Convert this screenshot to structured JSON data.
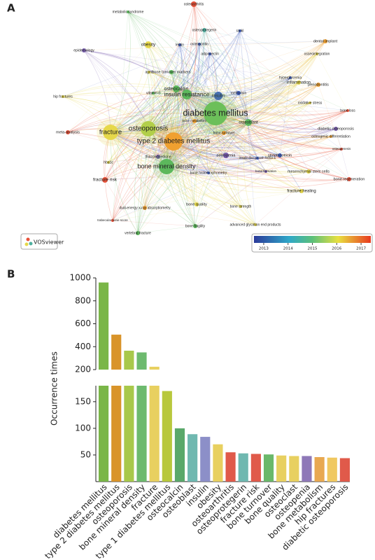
{
  "panel_labels": [
    "A",
    "B"
  ],
  "panel_a": {
    "nodes": [
      {
        "label": "osteoarthritis",
        "color": "#e8523a"
      },
      {
        "label": "metabolic syndrome",
        "color": "#5cb85c"
      },
      {
        "label": "osteoprotegerin",
        "color": "#4fb0a0"
      },
      {
        "label": "rankl",
        "color": "#3f5fc0"
      },
      {
        "label": "obesity",
        "color": "#e6d84a"
      },
      {
        "label": "leptin",
        "color": "#3f5fc0"
      },
      {
        "label": "osteopontin",
        "color": "#3f5fc0"
      },
      {
        "label": "dental implant",
        "color": "#f0a030"
      },
      {
        "label": "epidemiology",
        "color": "#7a5fb0"
      },
      {
        "label": "adiponectin",
        "color": "#3f5fc0"
      },
      {
        "label": "osseointegration",
        "color": "#e6d84a"
      },
      {
        "label": "aged",
        "color": "#e6d84a"
      },
      {
        "label": "bone turnover markers",
        "color": "#5cb85c"
      },
      {
        "label": "hyperglycemia",
        "color": "#3f5fc0"
      },
      {
        "label": "inflammation",
        "color": "#e6d84a"
      },
      {
        "label": "periodontitis",
        "color": "#f0a030"
      },
      {
        "label": "vitamin d",
        "color": "#5cb85c"
      },
      {
        "label": "osteocalcin",
        "color": "#5cb85c"
      },
      {
        "label": "insulin resistance",
        "color": "#5cb85c"
      },
      {
        "label": "insulin",
        "color": "#3f5fc0"
      },
      {
        "label": "metformin",
        "color": "#3f5fc0"
      },
      {
        "label": "hip fractures",
        "color": "#e6d84a"
      },
      {
        "label": "oxidative stress",
        "color": "#e6d84a"
      },
      {
        "label": "bone loss",
        "color": "#e8523a"
      },
      {
        "label": "osteoblast",
        "color": "#5cb85c"
      },
      {
        "label": "diabetes mellitus",
        "color": "#6cbf5a"
      },
      {
        "label": "bone metabolism",
        "color": "#f0a030"
      },
      {
        "label": "diabetic osteoporosis",
        "color": "#7a5fb0"
      },
      {
        "label": "osteogenic differentiation",
        "color": "#f0a030"
      },
      {
        "label": "meta-analysis",
        "color": "#e8523a"
      },
      {
        "label": "fracture",
        "color": "#e6d84a"
      },
      {
        "label": "osteoporosis",
        "color": "#b2cf4a"
      },
      {
        "label": "type 2 diabetes mellitus",
        "color": "#f0a030"
      },
      {
        "label": "bone turnover",
        "color": "#f0a030"
      },
      {
        "label": "thiazolidinedione",
        "color": "#7a5fb0"
      },
      {
        "label": "hba1c",
        "color": "#e6d84a"
      },
      {
        "label": "osteopenia",
        "color": "#7a5fb0"
      },
      {
        "label": "insulin-like growth factor-1",
        "color": "#3f5fc0"
      },
      {
        "label": "streptozotocin",
        "color": "#3f5fc0"
      },
      {
        "label": "osteogenesis",
        "color": "#e8523a"
      },
      {
        "label": "bone mineral density",
        "color": "#5cb85c"
      },
      {
        "label": "bone formation",
        "color": "#7a5fb0"
      },
      {
        "label": "mesenchymal stem cells",
        "color": "#e6d84a"
      },
      {
        "label": "fracture risk",
        "color": "#e8523a"
      },
      {
        "label": "bone histomorphometry",
        "color": "#3f5fc0"
      },
      {
        "label": "bone regeneration",
        "color": "#e8523a"
      },
      {
        "label": "fracture healing",
        "color": "#e6d84a"
      },
      {
        "label": "bone quality",
        "color": "#e6d84a"
      },
      {
        "label": "dual-energy x-ray absorptiometry",
        "color": "#f0a030"
      },
      {
        "label": "bone strength",
        "color": "#e6d84a"
      },
      {
        "label": "trabecular bone score",
        "color": "#e8523a"
      },
      {
        "label": "advanced glycation end products",
        "color": "#e6d84a"
      },
      {
        "label": "bone fragility",
        "color": "#5cb85c"
      },
      {
        "label": "vertebral fracture",
        "color": "#5cb85c"
      }
    ],
    "logo": "VOSviewer",
    "colorbar": {
      "lim": [
        2012.6,
        2017.4
      ],
      "ticks": [
        2013,
        2014,
        2015,
        2016,
        2017
      ]
    }
  },
  "chart_data": {
    "type": "bar",
    "ylabel": "Occurrence times",
    "categories": [
      "diabetes mellitus",
      "type 2 diabetes mellitus",
      "osteoporosis",
      "bone mineral density",
      "fracture",
      "type 1 diabetes mellitus",
      "osteocalcin",
      "osteoblast",
      "insulin",
      "obesity",
      "osteoarthritis",
      "osteoprotegerin",
      "fracture risk",
      "bone turnover",
      "bone quality",
      "osteoclast",
      "osteopenia",
      "bone metabolism",
      "hip fractures",
      "diabetic osteoporosis"
    ],
    "values": [
      960,
      505,
      365,
      350,
      225,
      170,
      100,
      89,
      84,
      70,
      55,
      53,
      52,
      51,
      49,
      48,
      48,
      46,
      45,
      44
    ],
    "colors": [
      "#7ab648",
      "#d9942a",
      "#a8c84a",
      "#6dba6e",
      "#e8d060",
      "#b8c83c",
      "#5aa86a",
      "#6fb8b0",
      "#8c8fc8",
      "#e8d060",
      "#e05a4a",
      "#6fb8b0",
      "#e05a4a",
      "#6ab86a",
      "#e8d060",
      "#e8d060",
      "#8e78b8",
      "#e8a850",
      "#f0c860",
      "#e05a4a"
    ],
    "broken_axis": [
      {
        "ylim": [
          0,
          180
        ],
        "yticks": [
          50,
          100,
          150
        ]
      },
      {
        "ylim": [
          200,
          1000
        ],
        "yticks": [
          200,
          400,
          600,
          800,
          1000
        ]
      }
    ]
  }
}
